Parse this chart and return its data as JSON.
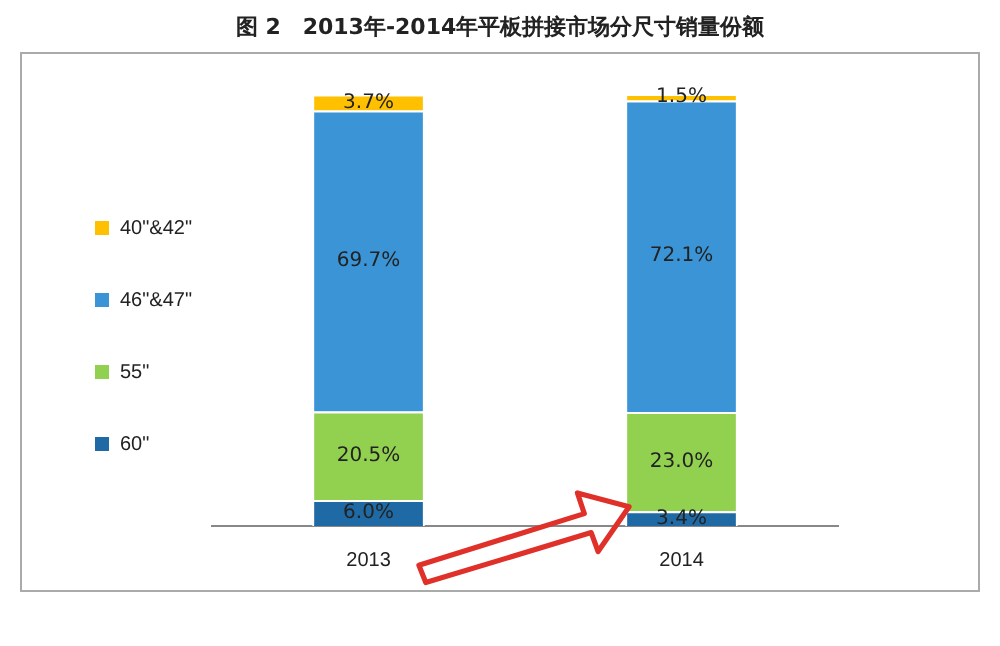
{
  "chart_data": {
    "type": "bar",
    "title": "图 2　2013年-2014年平板拼接市场分尺寸销量份额",
    "categories": [
      "2013",
      "2014"
    ],
    "stacked": true,
    "legend": "left",
    "series": [
      {
        "name": "60\"",
        "color": "#1f6aa5",
        "values": [
          6.0,
          3.4
        ],
        "value_labels": [
          "6.0%",
          "3.4%"
        ]
      },
      {
        "name": "55\"",
        "color": "#92d050",
        "values": [
          20.5,
          23.0
        ],
        "value_labels": [
          "20.5%",
          "23.0%"
        ]
      },
      {
        "name": "46\"&47\"",
        "color": "#3a94d6",
        "values": [
          69.7,
          72.1
        ],
        "value_labels": [
          "69.7%",
          "72.1%"
        ]
      },
      {
        "name": "40\"&42\"",
        "color": "#ffc000",
        "values": [
          3.7,
          1.5
        ],
        "value_labels": [
          "3.7%",
          "1.5%"
        ]
      }
    ]
  }
}
